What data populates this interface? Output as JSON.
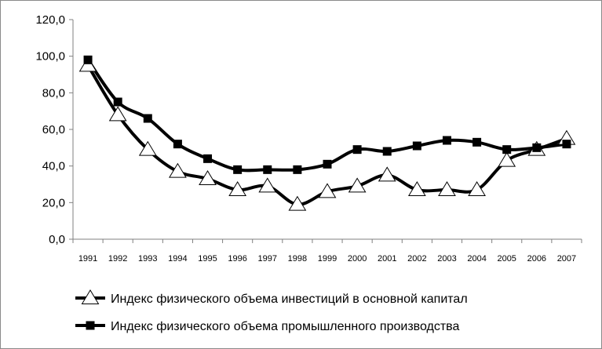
{
  "chart_data": {
    "type": "line",
    "title": "",
    "xlabel": "",
    "ylabel": "",
    "x": [
      "1991",
      "1992",
      "1993",
      "1994",
      "1995",
      "1996",
      "1997",
      "1998",
      "1999",
      "2000",
      "2001",
      "2002",
      "2003",
      "2004",
      "2005",
      "2006",
      "2007"
    ],
    "y_ticks": [
      "0,0",
      "20,0",
      "40,0",
      "60,0",
      "80,0",
      "100,0",
      "120,0"
    ],
    "ylim": [
      0,
      120
    ],
    "grid": false,
    "legend_position": "bottom",
    "series": [
      {
        "name": "Индекс физического объема инвестиций в основной капитал",
        "marker": "triangle-open",
        "color": "#000000",
        "values": [
          95,
          68,
          49,
          37,
          33,
          27,
          29,
          19,
          26,
          29,
          35,
          27,
          27,
          27,
          43,
          49,
          55
        ]
      },
      {
        "name": "Индекс физического объема промышленного производства",
        "marker": "square-filled",
        "color": "#000000",
        "values": [
          98,
          75,
          66,
          52,
          44,
          38,
          38,
          38,
          41,
          49,
          48,
          51,
          54,
          53,
          49,
          50,
          52
        ]
      }
    ]
  }
}
